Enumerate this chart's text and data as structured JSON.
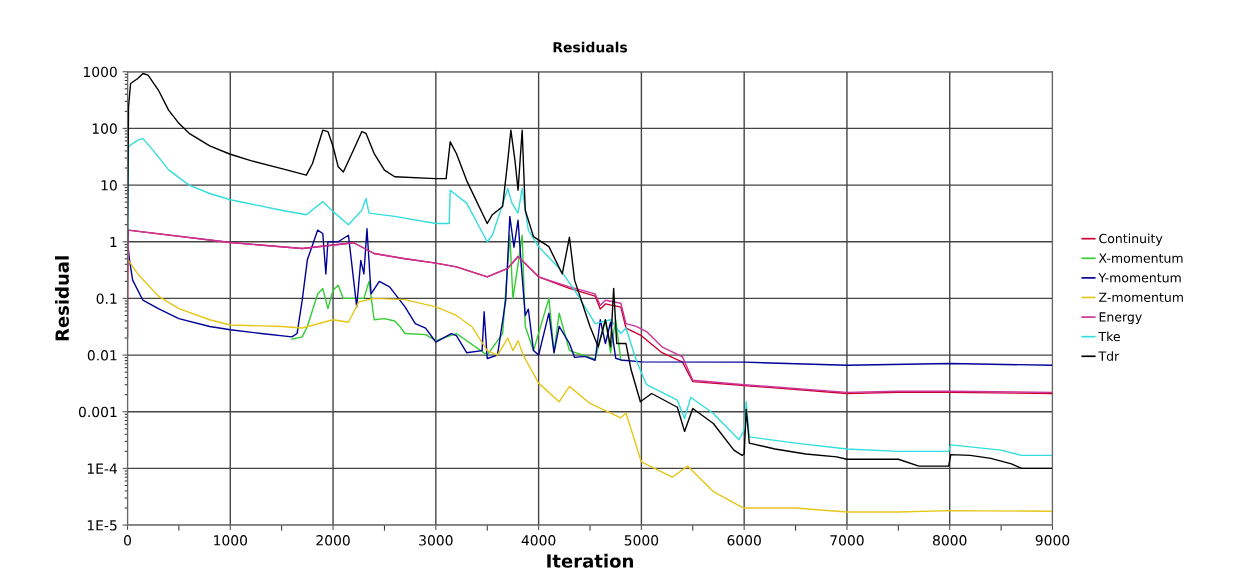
{
  "chart_data": {
    "type": "line",
    "title": "Residuals",
    "xlabel": "Iteration",
    "ylabel": "Residual",
    "log": "y",
    "grid": true,
    "legend": "right",
    "marker": "none",
    "line_style": "solid",
    "xlim": [
      0,
      9000
    ],
    "xticks": [
      0,
      1000,
      2000,
      3000,
      4000,
      5000,
      6000,
      7000,
      8000,
      9000
    ],
    "ylim": [
      1e-05,
      1000
    ],
    "yticks": [
      {
        "value": 1e-05,
        "label": "1E-5"
      },
      {
        "value": 0.0001,
        "label": "1E-4"
      },
      {
        "value": 0.001,
        "label": "0.001"
      },
      {
        "value": 0.01,
        "label": "0.01"
      },
      {
        "value": 0.1,
        "label": "0.1"
      },
      {
        "value": 1,
        "label": "1"
      },
      {
        "value": 10,
        "label": "10"
      },
      {
        "value": 100,
        "label": "100"
      },
      {
        "value": 1000,
        "label": "1000"
      }
    ],
    "series": [
      {
        "name": "Continuity",
        "color": "#cc0033",
        "x": [
          0,
          5,
          1000,
          1700,
          2200,
          2400,
          2700,
          3000,
          3200,
          3500,
          3700,
          3800,
          4000,
          4300,
          4550,
          4600,
          4650,
          4800,
          4850,
          5000,
          5200,
          5400,
          5500,
          6000,
          7000,
          7500,
          8000,
          9000
        ],
        "values": [
          0.02,
          1.6,
          0.97,
          0.76,
          0.96,
          0.62,
          0.5,
          0.42,
          0.36,
          0.24,
          0.34,
          0.55,
          0.24,
          0.15,
          0.11,
          0.065,
          0.08,
          0.07,
          0.03,
          0.022,
          0.011,
          0.0075,
          0.0034,
          0.0029,
          0.0021,
          0.0022,
          0.0022,
          0.0021
        ]
      },
      {
        "name": "X-momentum",
        "color": "#33cc33",
        "x": [
          1600,
          1700,
          1750,
          1850,
          1900,
          1950,
          2000,
          2050,
          2100,
          2300,
          2350,
          2400,
          2500,
          2600,
          2650,
          2700,
          2900,
          3000,
          3200,
          3500,
          3650,
          3720,
          3750,
          3800,
          3840,
          3870,
          3950,
          4100,
          4150,
          4200,
          4300,
          4550,
          4650,
          4700,
          4750,
          4800
        ],
        "values": [
          0.019,
          0.021,
          0.032,
          0.12,
          0.15,
          0.066,
          0.14,
          0.17,
          0.1,
          0.1,
          0.2,
          0.042,
          0.044,
          0.04,
          0.032,
          0.024,
          0.023,
          0.018,
          0.024,
          0.01,
          0.024,
          1.3,
          0.1,
          0.4,
          1.3,
          0.032,
          0.012,
          0.1,
          0.011,
          0.055,
          0.012,
          0.0085,
          0.042,
          0.011,
          0.042,
          0.0082
        ]
      },
      {
        "name": "Y-momentum",
        "color": "#000099",
        "x": [
          0,
          20,
          50,
          150,
          300,
          500,
          800,
          1000,
          1300,
          1600,
          1650,
          1700,
          1750,
          1850,
          1900,
          1930,
          1950,
          2050,
          2150,
          2230,
          2270,
          2300,
          2330,
          2370,
          2450,
          2550,
          2700,
          2800,
          2900,
          3000,
          3150,
          3200,
          3300,
          3450,
          3470,
          3500,
          3600,
          3680,
          3720,
          3760,
          3800,
          3830,
          3870,
          3900,
          3950,
          4000,
          4100,
          4150,
          4200,
          4300,
          4350,
          4450,
          4550,
          4600,
          4650,
          4700,
          4750,
          4800,
          5000,
          6000,
          7000,
          8000,
          9000
        ],
        "values": [
          1,
          0.47,
          0.21,
          0.093,
          0.066,
          0.044,
          0.032,
          0.028,
          0.024,
          0.021,
          0.024,
          0.093,
          0.48,
          1.6,
          1.4,
          0.27,
          1,
          1,
          1.3,
          0.071,
          0.47,
          0.27,
          1.7,
          0.12,
          0.2,
          0.16,
          0.071,
          0.036,
          0.03,
          0.017,
          0.024,
          0.022,
          0.011,
          0.012,
          0.058,
          0.0087,
          0.01,
          0.093,
          2.8,
          0.8,
          2.4,
          0.41,
          0.05,
          0.065,
          0.012,
          0.01,
          0.055,
          0.011,
          0.032,
          0.016,
          0.0091,
          0.0095,
          0.0081,
          0.042,
          0.016,
          0.038,
          0.0088,
          0.0082,
          0.0076,
          0.0075,
          0.0066,
          0.0071,
          0.0066
        ]
      },
      {
        "name": "Z-momentum",
        "color": "#e6c619",
        "x": [
          0,
          5,
          100,
          300,
          500,
          800,
          1000,
          1500,
          1700,
          2000,
          2150,
          2250,
          2400,
          2700,
          3000,
          3200,
          3350,
          3500,
          3600,
          3700,
          3750,
          3800,
          3850,
          4000,
          4200,
          4300,
          4500,
          4800,
          4850,
          5000,
          5300,
          5450,
          5700,
          5950,
          6000,
          6500,
          7000,
          7500,
          8000,
          9000
        ],
        "values": [
          1,
          0.48,
          0.27,
          0.11,
          0.066,
          0.042,
          0.034,
          0.032,
          0.03,
          0.042,
          0.038,
          0.087,
          0.1,
          0.095,
          0.071,
          0.05,
          0.032,
          0.012,
          0.01,
          0.02,
          0.012,
          0.018,
          0.01,
          0.0032,
          0.0015,
          0.0028,
          0.0014,
          0.00078,
          0.00095,
          0.00013,
          7e-05,
          0.00011,
          3.9e-05,
          2.2e-05,
          2e-05,
          2e-05,
          1.7e-05,
          1.7e-05,
          1.8e-05,
          1.75e-05
        ]
      },
      {
        "name": "Energy",
        "color": "#cc3399",
        "x": [
          0,
          10,
          1000,
          1700,
          2200,
          2400,
          2700,
          3000,
          3200,
          3500,
          3700,
          3800,
          4000,
          4300,
          4550,
          4600,
          4650,
          4800,
          4850,
          4950,
          5050,
          5200,
          5400,
          5500,
          6000,
          7000,
          7500,
          8000,
          9000
        ],
        "values": [
          0.3,
          1.6,
          0.97,
          0.76,
          0.96,
          0.62,
          0.5,
          0.42,
          0.36,
          0.24,
          0.34,
          0.55,
          0.24,
          0.16,
          0.12,
          0.076,
          0.093,
          0.082,
          0.036,
          0.032,
          0.026,
          0.014,
          0.0093,
          0.0036,
          0.003,
          0.0022,
          0.0023,
          0.0023,
          0.0022
        ]
      },
      {
        "name": "Tke",
        "color": "#33dddd",
        "x": [
          0,
          10,
          100,
          150,
          250,
          400,
          600,
          800,
          1000,
          1500,
          1740,
          1900,
          2000,
          2150,
          2280,
          2320,
          2350,
          2600,
          3000,
          3130,
          3140,
          3300,
          3500,
          3550,
          3700,
          3740,
          3800,
          3840,
          3900,
          4000,
          4200,
          4350,
          4550,
          4700,
          4800,
          4850,
          4950,
          5050,
          5350,
          5420,
          5480,
          5700,
          5950,
          6000,
          6020,
          6050,
          6500,
          7000,
          7500,
          7990,
          8010,
          8500,
          8700,
          9000
        ],
        "values": [
          1,
          48,
          62,
          66,
          41,
          18.5,
          10,
          7.1,
          5.5,
          3.6,
          3,
          5.1,
          3.4,
          2,
          3.6,
          5.8,
          3.2,
          2.8,
          2.1,
          2.1,
          8.1,
          4.8,
          1,
          1.3,
          8.7,
          4.8,
          3.2,
          8.7,
          1.6,
          0.82,
          0.34,
          0.14,
          0.036,
          0.042,
          0.024,
          0.03,
          0.0081,
          0.003,
          0.0016,
          0.00076,
          0.0018,
          0.00093,
          0.00032,
          0.00048,
          0.0015,
          0.00036,
          0.00028,
          0.00022,
          0.0002,
          0.0002,
          0.00026,
          0.00021,
          0.00017,
          0.00017
        ]
      },
      {
        "name": "Tdr",
        "color": "#000000",
        "x": [
          0,
          10,
          30,
          100,
          150,
          200,
          300,
          400,
          500,
          600,
          800,
          1000,
          1200,
          1500,
          1740,
          1800,
          1900,
          1950,
          2000,
          2050,
          2100,
          2200,
          2280,
          2320,
          2400,
          2500,
          2600,
          3000,
          3100,
          3140,
          3200,
          3300,
          3500,
          3550,
          3650,
          3700,
          3730,
          3770,
          3800,
          3840,
          3870,
          3950,
          4100,
          4230,
          4300,
          4350,
          4500,
          4580,
          4650,
          4700,
          4730,
          4760,
          4850,
          4900,
          4990,
          5100,
          5350,
          5420,
          5500,
          5700,
          5900,
          5980,
          6000,
          6020,
          6050,
          6300,
          6600,
          6900,
          7000,
          7500,
          7700,
          7990,
          8010,
          8200,
          8400,
          8600,
          8700,
          9000
        ],
        "values": [
          1,
          240,
          620,
          760,
          930,
          870,
          475,
          210,
          123,
          82,
          49,
          35,
          27,
          19.5,
          15,
          24,
          93,
          88,
          48,
          21,
          17,
          42,
          88,
          82,
          36,
          18.4,
          14,
          13,
          13,
          58,
          36,
          12,
          2.1,
          3,
          4.2,
          27,
          93,
          27,
          8.1,
          93,
          3.6,
          1.23,
          0.82,
          0.27,
          1.2,
          0.21,
          0.032,
          0.014,
          0.042,
          0.014,
          0.15,
          0.016,
          0.016,
          0.0055,
          0.0015,
          0.0021,
          0.0012,
          0.00045,
          0.00114,
          0.00062,
          0.00021,
          0.00017,
          0.00018,
          0.0011,
          0.00028,
          0.00022,
          0.00018,
          0.00016,
          0.000145,
          0.000145,
          0.00011,
          0.00011,
          0.000175,
          0.00017,
          0.00015,
          0.00012,
          0.0001,
          0.0001
        ]
      }
    ]
  }
}
